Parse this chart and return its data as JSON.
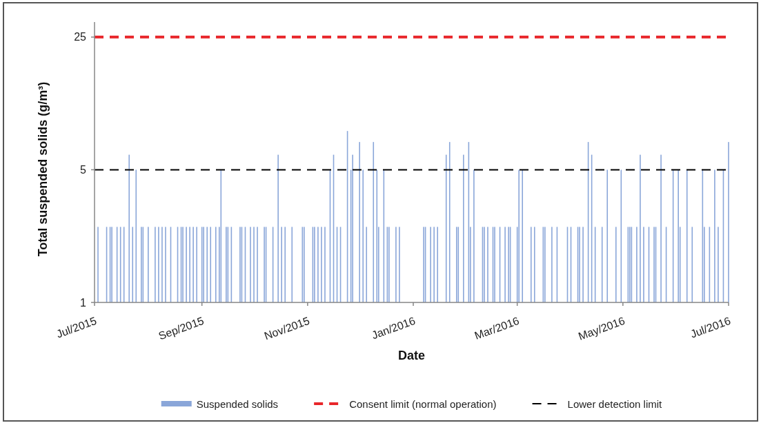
{
  "chart_data": {
    "type": "bar",
    "xlabel": "Date",
    "ylabel": "Total suspended solids (g/m³)",
    "x": [
      "2015-07-03",
      "2015-07-08",
      "2015-07-10",
      "2015-07-11",
      "2015-07-14",
      "2015-07-16",
      "2015-07-18",
      "2015-07-21",
      "2015-07-23",
      "2015-07-25",
      "2015-07-28",
      "2015-07-29",
      "2015-08-01",
      "2015-08-05",
      "2015-08-07",
      "2015-08-09",
      "2015-08-11",
      "2015-08-14",
      "2015-08-18",
      "2015-08-20",
      "2015-08-21",
      "2015-08-23",
      "2015-08-25",
      "2015-08-27",
      "2015-08-29",
      "2015-09-01",
      "2015-09-02",
      "2015-09-04",
      "2015-09-06",
      "2015-09-09",
      "2015-09-11",
      "2015-09-12",
      "2015-09-15",
      "2015-09-16",
      "2015-09-18",
      "2015-09-23",
      "2015-09-24",
      "2015-09-26",
      "2015-09-29",
      "2015-10-01",
      "2015-10-03",
      "2015-10-07",
      "2015-10-08",
      "2015-10-12",
      "2015-10-15",
      "2015-10-17",
      "2015-10-19",
      "2015-10-23",
      "2015-10-29",
      "2015-10-30",
      "2015-11-04",
      "2015-11-05",
      "2015-11-07",
      "2015-11-09",
      "2015-11-11",
      "2015-11-14",
      "2015-11-16",
      "2015-11-18",
      "2015-11-20",
      "2015-11-24",
      "2015-11-26",
      "2015-11-27",
      "2015-12-01",
      "2015-12-03",
      "2015-12-05",
      "2015-12-09",
      "2015-12-11",
      "2015-12-12",
      "2015-12-15",
      "2015-12-17",
      "2015-12-18",
      "2015-12-22",
      "2015-12-24",
      "2016-01-07",
      "2016-01-08",
      "2016-01-11",
      "2016-01-13",
      "2016-01-15",
      "2016-01-20",
      "2016-01-22",
      "2016-01-26",
      "2016-01-27",
      "2016-01-30",
      "2016-02-02",
      "2016-02-03",
      "2016-02-05",
      "2016-02-10",
      "2016-02-11",
      "2016-02-13",
      "2016-02-16",
      "2016-02-17",
      "2016-02-20",
      "2016-02-23",
      "2016-02-25",
      "2016-02-26",
      "2016-03-01",
      "2016-03-02",
      "2016-03-04",
      "2016-03-09",
      "2016-03-11",
      "2016-03-16",
      "2016-03-17",
      "2016-03-21",
      "2016-03-24",
      "2016-03-30",
      "2016-04-01",
      "2016-04-05",
      "2016-04-06",
      "2016-04-08",
      "2016-04-11",
      "2016-04-13",
      "2016-04-15",
      "2016-04-19",
      "2016-04-22",
      "2016-04-27",
      "2016-04-30",
      "2016-05-04",
      "2016-05-05",
      "2016-05-06",
      "2016-05-09",
      "2016-05-11",
      "2016-05-13",
      "2016-05-16",
      "2016-05-19",
      "2016-05-20",
      "2016-05-23",
      "2016-05-26",
      "2016-05-30",
      "2016-06-02",
      "2016-06-03",
      "2016-06-07",
      "2016-06-10",
      "2016-06-16",
      "2016-06-17",
      "2016-06-20",
      "2016-06-23",
      "2016-06-25",
      "2016-06-28",
      "2016-07-01"
    ],
    "series": [
      {
        "name": "Suspended solids",
        "color": "#8aa6d9",
        "values": [
          2.5,
          2.5,
          2.5,
          2.5,
          2.5,
          2.5,
          2.5,
          6,
          2.5,
          5,
          2.5,
          2.5,
          2.5,
          2.5,
          2.5,
          2.5,
          2.5,
          2.5,
          2.5,
          2.5,
          2.5,
          2.5,
          2.5,
          2.5,
          2.5,
          2.5,
          2.5,
          2.5,
          2.5,
          2.5,
          2.5,
          5,
          2.5,
          2.5,
          2.5,
          2.5,
          2.5,
          2.5,
          2.5,
          2.5,
          2.5,
          2.5,
          2.5,
          2.5,
          6,
          2.5,
          2.5,
          2.5,
          2.5,
          2.5,
          2.5,
          2.5,
          2.5,
          2.5,
          2.5,
          5,
          6,
          2.5,
          2.5,
          8,
          5,
          6,
          7,
          5,
          2.5,
          7,
          5,
          2.5,
          5,
          2.5,
          2.5,
          2.5,
          2.5,
          2.5,
          2.5,
          2.5,
          2.5,
          2.5,
          6,
          7,
          2.5,
          2.5,
          6,
          7,
          2.5,
          5,
          2.5,
          2.5,
          2.5,
          2.5,
          2.5,
          2.5,
          2.5,
          2.5,
          2.5,
          2.5,
          5,
          5,
          2.5,
          2.5,
          2.5,
          2.5,
          2.5,
          2.5,
          2.5,
          2.5,
          2.5,
          2.5,
          2.5,
          7,
          6,
          2.5,
          2.5,
          5,
          2.5,
          5,
          2.5,
          2.5,
          2.5,
          2.5,
          6,
          2.5,
          2.5,
          2.5,
          2.5,
          6,
          2.5,
          5,
          5,
          2.5,
          5,
          2.5,
          5,
          2.5,
          2.5,
          5,
          2.5,
          5,
          7
        ]
      }
    ],
    "xlim": [
      "2015-07-01",
      "2016-07-01"
    ],
    "xticks": [
      {
        "value": "2015-07-01",
        "label": "Jul/2015"
      },
      {
        "value": "2015-09-01",
        "label": "Sep/2015"
      },
      {
        "value": "2015-11-01",
        "label": "Nov/2015"
      },
      {
        "value": "2016-01-01",
        "label": "Jan/2016"
      },
      {
        "value": "2016-03-01",
        "label": "Mar/2016"
      },
      {
        "value": "2016-05-01",
        "label": "May/2016"
      },
      {
        "value": "2016-07-01",
        "label": "Jul/2016"
      }
    ],
    "ylim": [
      1,
      30
    ],
    "yticks": [
      1,
      5,
      25
    ],
    "log": true,
    "ref_lines": [
      {
        "axis": "y",
        "value": 25,
        "label": "Consent limit (normal operation)",
        "color": "#e8262a",
        "line_style": "dashed"
      },
      {
        "axis": "y",
        "value": 5,
        "label": "Lower detection limit",
        "color": "#000000",
        "line_style": "dashed"
      }
    ],
    "legend": "bottom"
  }
}
